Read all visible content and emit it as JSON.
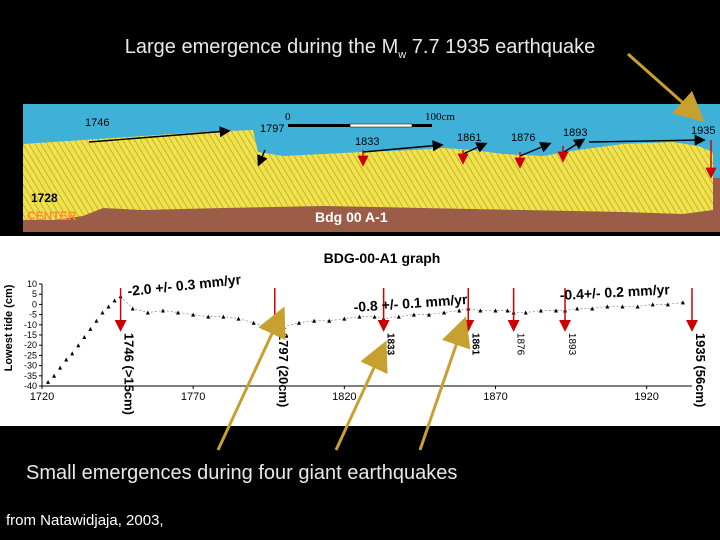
{
  "slide": {
    "title_pre": "Large emergence during the M",
    "title_sub": "w",
    "title_post": " 7.7 1935 earthquake",
    "bottom_caption": "Small emergences during four giant earthquakes",
    "source": "from Natawidjaja, 2003,"
  },
  "coral_section": {
    "year_labels": [
      "1746",
      "1797",
      "1833",
      "1861",
      "1876",
      "1893",
      "1935",
      "1728"
    ],
    "scale_start": "0",
    "scale_end": "100cm",
    "center_label": "CENTER",
    "sample_label": "Bdg 00 A-1"
  },
  "chart_data": {
    "type": "scatter",
    "title": "BDG-00-A1 graph",
    "ylabel": "Lowest tide (cm)",
    "xlabel": "",
    "xlim": [
      1720,
      1935
    ],
    "ylim": [
      -40,
      10
    ],
    "x_ticks": [
      1720,
      1770,
      1820,
      1870,
      1920
    ],
    "y_ticks": [
      10,
      5,
      0,
      -5,
      -10,
      -15,
      -20,
      -25,
      -30,
      -35,
      -40
    ],
    "series": [
      {
        "points": [
          [
            1722,
            -38
          ],
          [
            1724,
            -35
          ],
          [
            1726,
            -31
          ],
          [
            1728,
            -27
          ],
          [
            1730,
            -24
          ],
          [
            1732,
            -20
          ],
          [
            1734,
            -16
          ],
          [
            1736,
            -12
          ],
          [
            1738,
            -8
          ],
          [
            1740,
            -4
          ],
          [
            1742,
            -1
          ],
          [
            1744,
            2
          ],
          [
            1746,
            4
          ],
          [
            1750,
            -2
          ],
          [
            1755,
            -4
          ],
          [
            1760,
            -3
          ],
          [
            1765,
            -4
          ],
          [
            1770,
            -5
          ],
          [
            1775,
            -6
          ],
          [
            1780,
            -6
          ],
          [
            1785,
            -7
          ],
          [
            1790,
            -9
          ],
          [
            1794,
            -11
          ],
          [
            1797,
            -13
          ],
          [
            1800,
            -11
          ],
          [
            1805,
            -9
          ],
          [
            1810,
            -8
          ],
          [
            1815,
            -8
          ],
          [
            1820,
            -7
          ],
          [
            1825,
            -6
          ],
          [
            1830,
            -6
          ],
          [
            1833,
            -7
          ],
          [
            1838,
            -6
          ],
          [
            1843,
            -5
          ],
          [
            1848,
            -5
          ],
          [
            1853,
            -4
          ],
          [
            1858,
            -3
          ],
          [
            1861,
            -2
          ],
          [
            1865,
            -3
          ],
          [
            1870,
            -3
          ],
          [
            1874,
            -3
          ],
          [
            1876,
            -4
          ],
          [
            1880,
            -4
          ],
          [
            1885,
            -3
          ],
          [
            1890,
            -3
          ],
          [
            1893,
            -3
          ],
          [
            1897,
            -2
          ],
          [
            1902,
            -2
          ],
          [
            1907,
            -1
          ],
          [
            1912,
            -1
          ],
          [
            1917,
            -1
          ],
          [
            1922,
            0
          ],
          [
            1927,
            0
          ],
          [
            1932,
            1
          ]
        ]
      }
    ],
    "rate_annotations": [
      {
        "text": "-2.0 +/- 0.3 mm/yr"
      },
      {
        "text": "-0.8 +/- 0.1 mm/yr"
      },
      {
        "text": "-0.4+/- 0.2 mm/yr"
      }
    ],
    "event_annotations": [
      {
        "year": 1746,
        "label": "1746 (>15cm)"
      },
      {
        "year": 1797,
        "label": "1797 (20cm)"
      },
      {
        "year": 1833,
        "label": "1833"
      },
      {
        "year": 1861,
        "label": "1861"
      },
      {
        "year": 1876,
        "label": "1876"
      },
      {
        "year": 1893,
        "label": "1893"
      },
      {
        "year": 1935,
        "label": "1935 (56cm)"
      }
    ],
    "colors": {
      "points": "#000000",
      "arrows": "#cc0000",
      "fit_line": "#888888"
    }
  }
}
